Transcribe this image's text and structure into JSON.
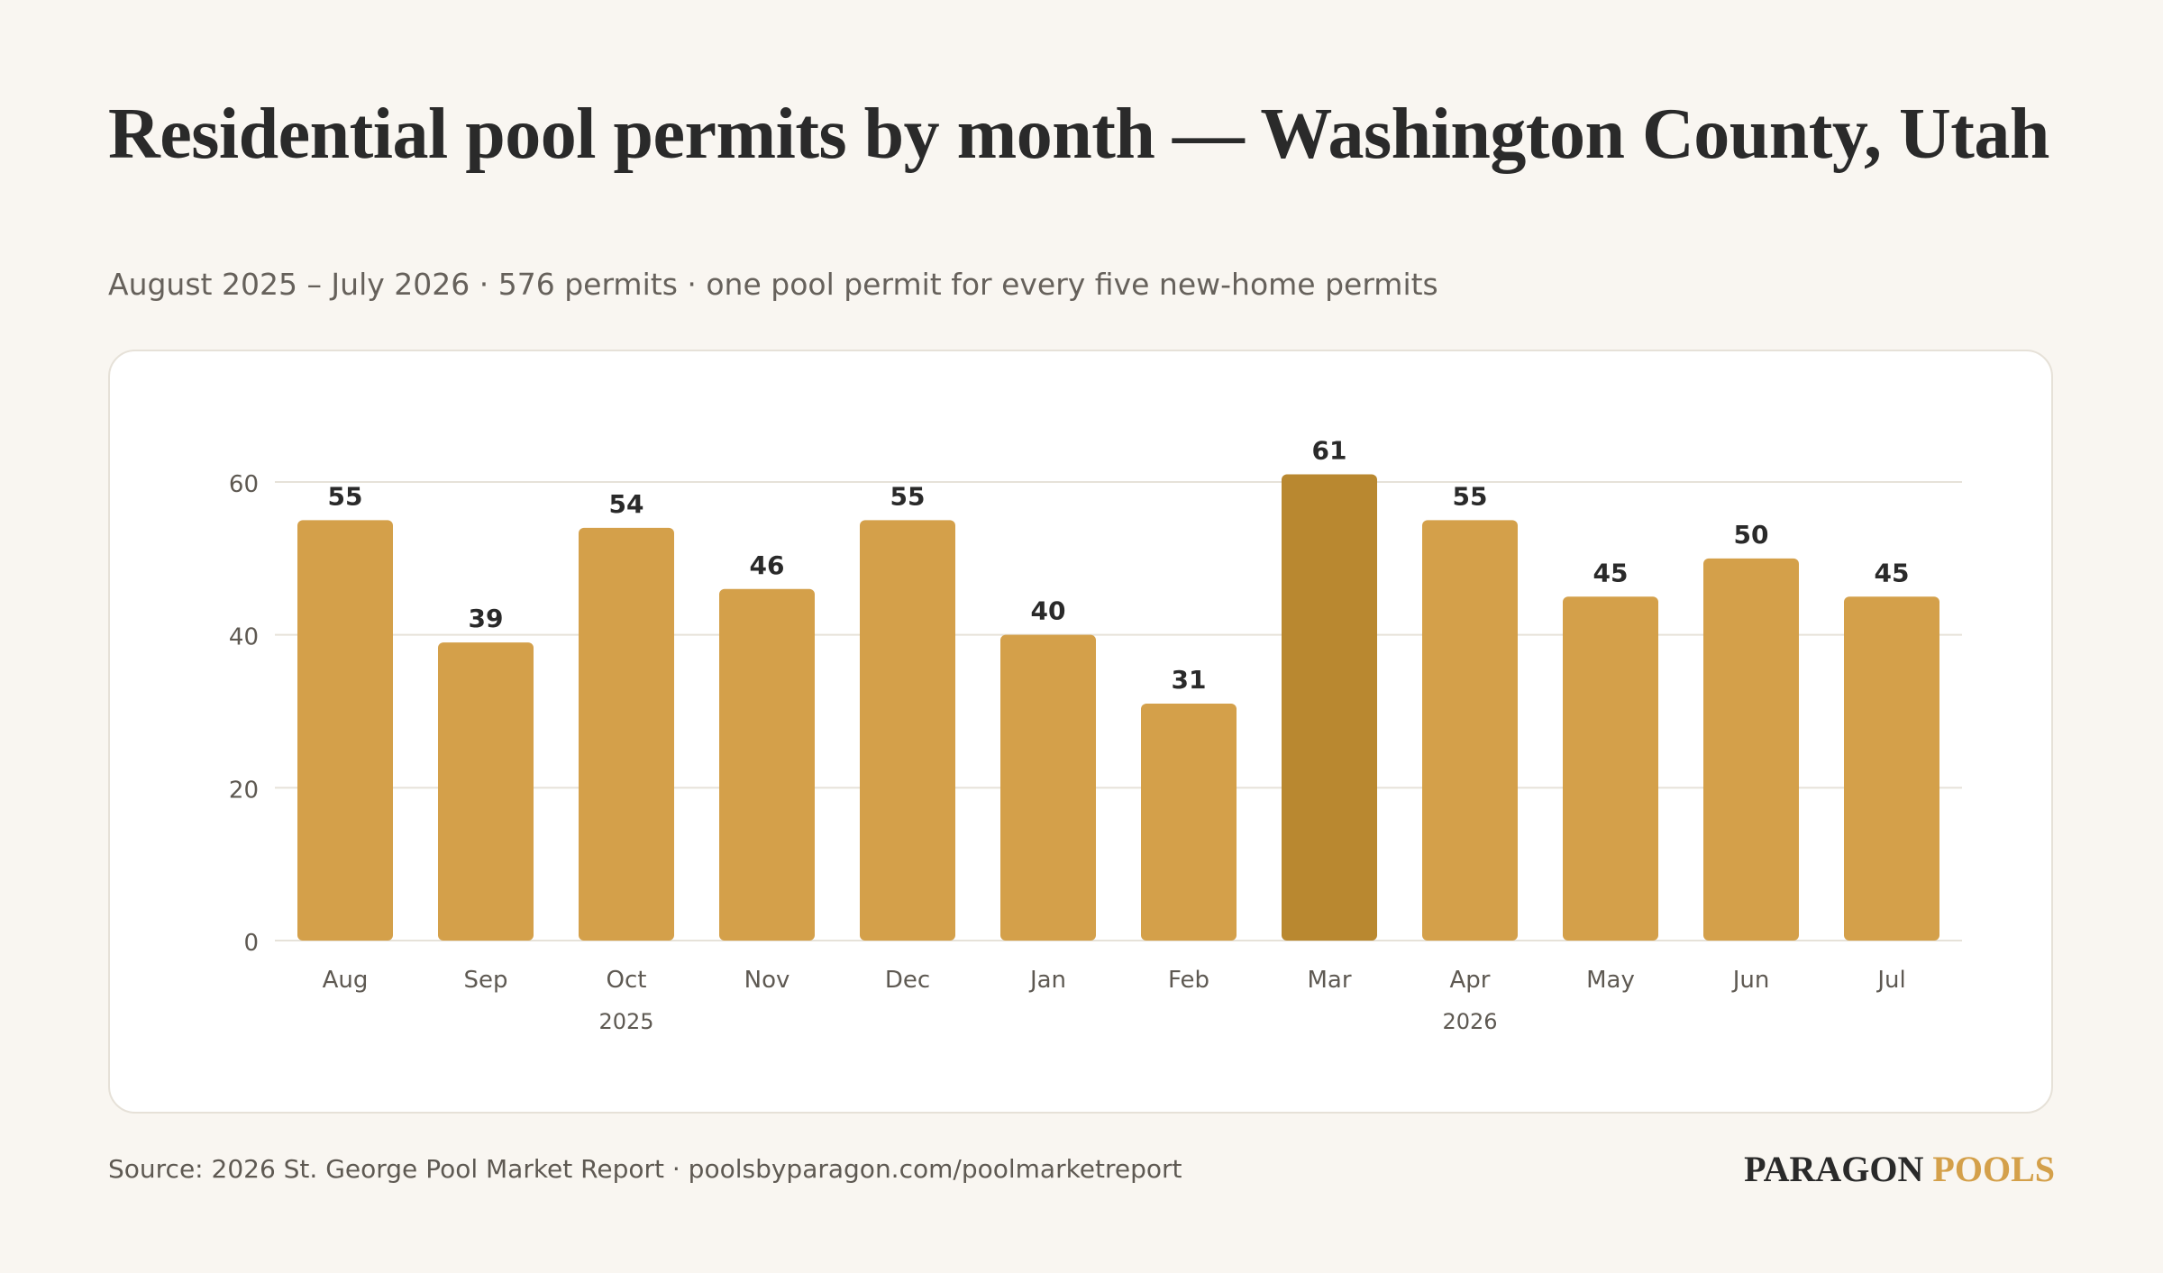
{
  "header": {
    "title": "Residential pool permits by month — Washington County, Utah",
    "subtitle": "August 2025 – July 2026 · 576 permits · one pool permit for every five new-home permits"
  },
  "footer": {
    "source": "Source: 2026 St. George Pool Market Report · poolsbyparagon.com/poolmarketreport",
    "brand_primary": "PARAGON",
    "brand_accent": "POOLS"
  },
  "colors": {
    "bar": "#d4a04a",
    "highlight_bar": "#b98830",
    "grid": "#e6e2d9",
    "tick_text": "#5e5952",
    "value_text": "#2a2a2a",
    "brand_accent": "#d4a04a"
  },
  "chart_data": {
    "type": "bar",
    "categories": [
      "Aug",
      "Sep",
      "Oct",
      "Nov",
      "Dec",
      "Jan",
      "Feb",
      "Mar",
      "Apr",
      "May",
      "Jun",
      "Jul"
    ],
    "values": [
      55,
      39,
      54,
      46,
      55,
      40,
      31,
      61,
      55,
      45,
      50,
      45
    ],
    "highlight_category": "Mar",
    "year_labels": [
      {
        "label": "2025",
        "category": "Oct"
      },
      {
        "label": "2026",
        "category": "Apr"
      }
    ],
    "yticks": [
      0,
      20,
      40,
      60
    ],
    "ylim": [
      0,
      61
    ],
    "grid": true,
    "data_labels": true
  }
}
